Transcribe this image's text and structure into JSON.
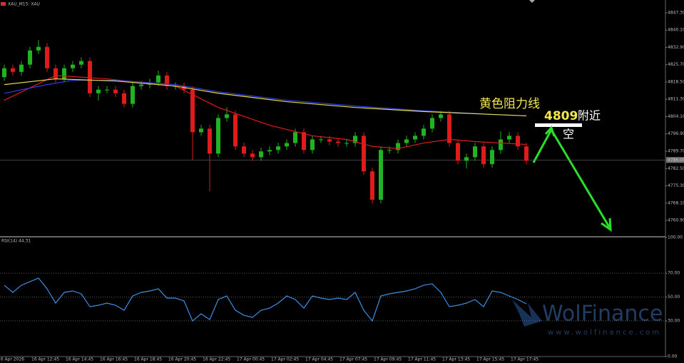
{
  "chart_data": [
    {
      "type": "candlestick",
      "title": "XAU_M15: XAU",
      "open": [
        4820.5,
        4824.2,
        4822.7,
        4825.7,
        4831.6,
        4833.1,
        4824.2,
        4819.8,
        4824.2,
        4825.7,
        4827.2,
        4813.8,
        4815.3,
        4815.3,
        4813.8,
        4809.4,
        4816.8,
        4817.4,
        4818.3,
        4821.2,
        4816.8,
        4816.8,
        4815.3,
        4797.6,
        4799.1,
        4788.7,
        4803.5,
        4805.0,
        4791.7,
        4788.7,
        4787.2,
        4789.6,
        4790.2,
        4791.7,
        4793.1,
        4797.6,
        4790.2,
        4794.6,
        4794.6,
        4793.7,
        4793.1,
        4793.1,
        4796.1,
        4781.3,
        4769.5,
        4790.2,
        4790.2,
        4793.1,
        4794.6,
        4796.1,
        4799.1,
        4803.5,
        4805.0,
        4793.1,
        4785.7,
        4787.2,
        4791.7,
        4784.3,
        4790.2,
        4794.6,
        4796.1,
        4791.7
      ],
      "high": [
        4825.7,
        4825.7,
        4827.2,
        4833.1,
        4836.0,
        4834.6,
        4825.7,
        4825.7,
        4827.2,
        4828.7,
        4828.7,
        4816.8,
        4816.8,
        4816.8,
        4815.3,
        4818.3,
        4818.9,
        4819.8,
        4823.2,
        4822.7,
        4818.3,
        4818.3,
        4816.8,
        4800.6,
        4800.6,
        4805.0,
        4808.0,
        4806.5,
        4793.2,
        4790.2,
        4791.1,
        4791.7,
        4793.2,
        4794.6,
        4799.1,
        4799.1,
        4796.1,
        4796.1,
        4796.1,
        4795.2,
        4794.6,
        4797.6,
        4797.6,
        4782.8,
        4791.7,
        4791.7,
        4794.6,
        4796.1,
        4797.6,
        4800.6,
        4805.0,
        4806.5,
        4806.5,
        4794.6,
        4788.7,
        4793.2,
        4793.2,
        4791.7,
        4798.0,
        4797.6,
        4797.6,
        4793.2
      ],
      "low": [
        4819.0,
        4821.2,
        4821.2,
        4824.2,
        4830.1,
        4822.7,
        4818.3,
        4818.3,
        4822.7,
        4824.2,
        4812.3,
        4810.8,
        4813.8,
        4812.3,
        4807.9,
        4807.9,
        4815.3,
        4815.9,
        4816.8,
        4815.3,
        4815.3,
        4813.8,
        4786.0,
        4796.1,
        4773.0,
        4787.2,
        4802.0,
        4790.2,
        4787.2,
        4785.7,
        4785.7,
        4788.1,
        4788.7,
        4790.2,
        4791.6,
        4788.7,
        4788.7,
        4793.1,
        4792.2,
        4791.6,
        4791.6,
        4791.6,
        4779.8,
        4768.0,
        4768.0,
        4788.7,
        4788.7,
        4791.6,
        4793.1,
        4794.6,
        4797.6,
        4802.0,
        4791.6,
        4784.2,
        4782.5,
        4785.7,
        4782.8,
        4782.8,
        4788.7,
        4793.1,
        4790.2,
        4784.2
      ],
      "close": [
        4824.2,
        4822.7,
        4825.7,
        4831.6,
        4833.1,
        4824.2,
        4819.8,
        4824.2,
        4825.7,
        4827.2,
        4813.8,
        4815.3,
        4815.3,
        4813.8,
        4809.4,
        4816.8,
        4817.4,
        4818.3,
        4821.2,
        4816.8,
        4816.8,
        4815.3,
        4797.6,
        4799.1,
        4788.7,
        4803.5,
        4805.0,
        4791.7,
        4788.7,
        4787.2,
        4789.6,
        4790.2,
        4791.7,
        4793.1,
        4797.6,
        4790.2,
        4794.6,
        4794.6,
        4793.7,
        4793.1,
        4793.1,
        4796.1,
        4781.3,
        4769.5,
        4790.2,
        4790.2,
        4793.1,
        4794.6,
        4796.1,
        4799.1,
        4803.5,
        4805.0,
        4793.1,
        4785.7,
        4787.2,
        4791.7,
        4784.3,
        4790.2,
        4794.6,
        4796.1,
        4791.7,
        4785.7
      ],
      "up_color": "#21b321",
      "down_color": "#e01b1b",
      "lines": [
        {
          "color": "#e01b1b",
          "x": [
            0,
            6,
            12,
            20,
            25,
            31,
            36,
            40,
            43,
            46,
            49,
            52,
            55,
            58,
            61
          ],
          "values": [
            4810.9,
            4821.2,
            4819.8,
            4816.8,
            4807.9,
            4800.5,
            4796.1,
            4794.6,
            4791.7,
            4790.8,
            4793.1,
            4794.6,
            4793.7,
            4793.1,
            4792.5
          ]
        },
        {
          "color": "#2b3fe0",
          "x": [
            0,
            5,
            8,
            13,
            20,
            25,
            33,
            41,
            49,
            57,
            61
          ],
          "values": [
            4813.8,
            4817.4,
            4819.2,
            4819.2,
            4817.4,
            4814.4,
            4810.9,
            4808.5,
            4806.5,
            4805.0,
            4804.4
          ]
        },
        {
          "color": "#e8d84a",
          "x": [
            0,
            6,
            13,
            20,
            25,
            33,
            41,
            49,
            57,
            61
          ],
          "values": [
            4817.4,
            4819.8,
            4818.9,
            4816.8,
            4813.8,
            4810.3,
            4807.9,
            4806.2,
            4805.0,
            4804.4
          ]
        }
      ],
      "ylim": [
        4754.1,
        4852.6
      ],
      "yticks": [
        {
          "value": 4847.3,
          "label": "4847.30"
        },
        {
          "value": 4840.1,
          "label": "4840.10"
        },
        {
          "value": 4832.9,
          "label": "4832.90"
        },
        {
          "value": 4825.7,
          "label": "4825.70"
        },
        {
          "value": 4818.5,
          "label": "4818.50"
        },
        {
          "value": 4811.3,
          "label": "4811.30"
        },
        {
          "value": 4804.1,
          "label": "4804.10"
        },
        {
          "value": 4796.9,
          "label": "4796.90"
        },
        {
          "value": 4789.7,
          "label": "4789.70"
        },
        {
          "value": 4782.5,
          "label": "4782.50"
        },
        {
          "value": 4775.3,
          "label": "4775.30"
        },
        {
          "value": 4768.1,
          "label": "4768.10"
        },
        {
          "value": 4760.9,
          "label": "4760.90"
        }
      ],
      "current_price": {
        "value": 4786.05,
        "label": "4786.05"
      },
      "x_labels": [
        "16 Apr 2026",
        "16 Apr 12:45",
        "16 Apr 14:45",
        "16 Apr 16:45",
        "16 Apr 18:45",
        "16 Apr 20:45",
        "16 Apr 22:45",
        "17 Apr 00:45",
        "17 Apr 02:45",
        "17 Apr 04:45",
        "17 Apr 07:45",
        "17 Apr 09:45",
        "17 Apr 11:45",
        "17 Apr 13:45",
        "17 Apr 15:45",
        "17 Apr 17:45"
      ],
      "resistance_label": "黄色阻力线",
      "annotation_price": "4809",
      "annotation_near": "附近",
      "annotation_action": "空"
    },
    {
      "type": "line",
      "title": "RSI(14) 44.31",
      "color": "#3d8fe6",
      "values": [
        59.9,
        53.9,
        59.9,
        62.9,
        65.9,
        56.9,
        44.9,
        53.9,
        55.1,
        52.7,
        41.9,
        43.1,
        44.9,
        43.1,
        38.9,
        50.9,
        53.9,
        55.1,
        56.9,
        49.1,
        49.1,
        46.7,
        29.9,
        35.9,
        31.1,
        47.9,
        50.9,
        38.9,
        34.7,
        32.9,
        38.9,
        40.7,
        44.9,
        50.9,
        47.9,
        40.7,
        50.9,
        49.1,
        47.9,
        49.1,
        47.9,
        53.9,
        38.9,
        29.9,
        50.9,
        52.7,
        53.9,
        55.1,
        56.9,
        59.9,
        61.1,
        53.9,
        41.9,
        43.1,
        44.9,
        47.9,
        41.9,
        55.1,
        53.9,
        50.9,
        47.9,
        44.31
      ],
      "ylim": [
        0,
        100
      ],
      "yticks": [
        {
          "value": 100,
          "label": "100.00"
        },
        {
          "value": 70,
          "label": "70.00"
        },
        {
          "value": 50,
          "label": "50.00"
        },
        {
          "value": 30,
          "label": "30.00"
        },
        {
          "value": 0,
          "label": "0.00"
        }
      ],
      "watermark": "WolFinance",
      "watermark_url": "www.wolfinance.com"
    }
  ]
}
